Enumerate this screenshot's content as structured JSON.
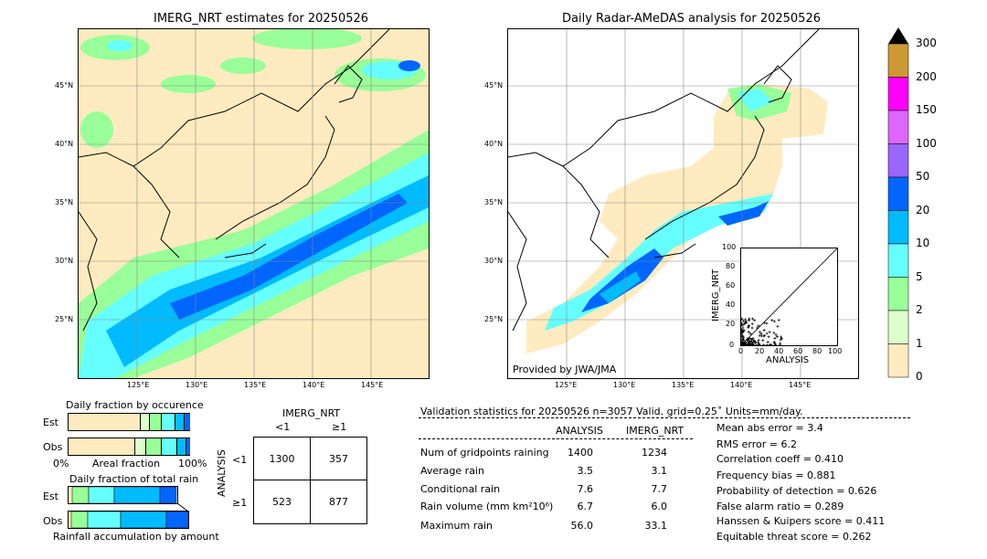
{
  "left_map": {
    "title": "IMERG_NRT estimates for 20250526",
    "lat_ticks": [
      "45°N",
      "40°N",
      "35°N",
      "30°N",
      "25°N"
    ],
    "lon_ticks": [
      "125°E",
      "130°E",
      "135°E",
      "140°E",
      "145°E"
    ]
  },
  "right_map": {
    "title": "Daily Radar-AMeDAS analysis for 20250526",
    "lat_ticks": [
      "45°N",
      "40°N",
      "35°N",
      "30°N",
      "25°N"
    ],
    "lon_ticks": [
      "125°E",
      "130°E",
      "135°E",
      "140°E",
      "145°E"
    ],
    "credit": "Provided by JWA/JMA"
  },
  "colorbar": {
    "labels": [
      "300",
      "200",
      "150",
      "100",
      "50",
      "20",
      "10",
      "5",
      "2",
      "1",
      "0"
    ],
    "colors": [
      "#cc9933",
      "#ff00ff",
      "#dd66ff",
      "#9966ff",
      "#0066ff",
      "#00bbff",
      "#66ffff",
      "#99ff99",
      "#ddffcc",
      "#ffebbf"
    ]
  },
  "inset_scatter": {
    "ylabel": "IMERG_NRT",
    "xlabel": "ANALYSIS",
    "ticks": [
      "0",
      "20",
      "40",
      "60",
      "80",
      "100"
    ]
  },
  "fraction_occurrence": {
    "title": "Daily fraction by occurence",
    "row_est": "Est",
    "row_obs": "Obs",
    "axis_left": "0%",
    "axis_mid": "Areal fraction",
    "axis_right": "100%"
  },
  "fraction_total": {
    "title": "Daily fraction of total rain",
    "row_est": "Est",
    "row_obs": "Obs",
    "axis_label": "Rainfall accumulation by amount"
  },
  "contingency": {
    "col_title": "IMERG_NRT",
    "col_lt": "<1",
    "col_ge": "≥1",
    "row_title": "ANALYSIS",
    "row_lt": "<1",
    "row_ge": "≥1",
    "cells": [
      "1300",
      "357",
      "523",
      "877"
    ]
  },
  "validation": {
    "header": "Validation statistics for 20250526  n=3057 Valid. grid=0.25˚ Units=mm/day.",
    "col_analysis": "ANALYSIS",
    "col_imerg": "IMERG_NRT",
    "rows": [
      {
        "label": "Num of gridpoints raining",
        "analysis": "1400",
        "imerg": "1234"
      },
      {
        "label": "Average rain",
        "analysis": "3.5",
        "imerg": "3.1"
      },
      {
        "label": "Conditional rain",
        "analysis": "7.6",
        "imerg": "7.7"
      },
      {
        "label": "Rain volume (mm km²10⁶)",
        "analysis": "6.7",
        "imerg": "6.0"
      },
      {
        "label": "Maximum rain",
        "analysis": "56.0",
        "imerg": "33.1"
      }
    ],
    "scores": [
      "Mean abs error =    3.4",
      "RMS error =    6.2",
      "Correlation coeff =  0.410",
      "Frequency bias =  0.881",
      "Probability of detection =  0.626",
      "False alarm ratio =  0.289",
      "Hanssen & Kuipers score =  0.411",
      "Equitable threat score =  0.262"
    ]
  },
  "chart_data": [
    {
      "type": "heatmap",
      "title": "IMERG_NRT estimates for 20250526",
      "x_ticks": [
        "125°E",
        "130°E",
        "135°E",
        "140°E",
        "145°E"
      ],
      "y_ticks": [
        "45°N",
        "40°N",
        "35°N",
        "30°N",
        "25°N"
      ]
    },
    {
      "type": "heatmap",
      "title": "Daily Radar-AMeDAS analysis for 20250526",
      "x_ticks": [
        "125°E",
        "130°E",
        "135°E",
        "140°E",
        "145°E"
      ],
      "y_ticks": [
        "45°N",
        "40°N",
        "35°N",
        "30°N",
        "25°N"
      ]
    },
    {
      "type": "scatter",
      "xlabel": "ANALYSIS",
      "ylabel": "IMERG_NRT",
      "xlim": [
        0,
        100
      ],
      "ylim": [
        0,
        100
      ]
    },
    {
      "type": "table",
      "rows": [
        "<1",
        "≥1"
      ],
      "columns": [
        "<1",
        "≥1"
      ],
      "values": [
        [
          1300,
          357
        ],
        [
          523,
          877
        ]
      ]
    }
  ]
}
